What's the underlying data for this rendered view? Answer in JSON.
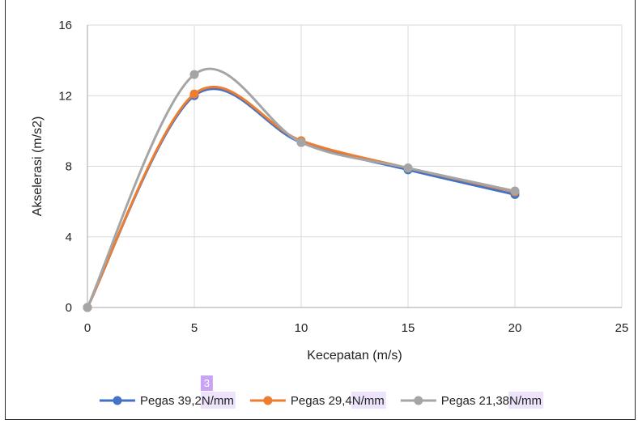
{
  "chart_data": {
    "type": "line",
    "xlabel": "Kecepatan (m/s)",
    "ylabel": "Akselerasi (m/s2)",
    "xlim": [
      0,
      25
    ],
    "ylim": [
      0,
      16
    ],
    "xticks": [
      0,
      5,
      10,
      15,
      20,
      25
    ],
    "yticks": [
      0,
      4,
      8,
      12,
      16
    ],
    "grid": "vertical and horizontal gridlines",
    "smooth": true,
    "legend_position": "bottom",
    "series": [
      {
        "name_prefix": "Pegas 39,2",
        "name_unit": "N/mm",
        "color": "#4472C4",
        "x": [
          0,
          5,
          10,
          15,
          20
        ],
        "y": [
          0,
          12.0,
          9.35,
          7.8,
          6.4
        ]
      },
      {
        "name_prefix": "Pegas 29,4",
        "name_unit": "N/mm",
        "color": "#ED7D31",
        "x": [
          0,
          5,
          10,
          15,
          20
        ],
        "y": [
          0,
          12.1,
          9.45,
          7.9,
          6.55
        ]
      },
      {
        "name_prefix": "Pegas 21,38",
        "name_unit": "N/mm",
        "color": "#A5A5A5",
        "x": [
          0,
          5,
          10,
          15,
          20
        ],
        "y": [
          0,
          13.2,
          9.35,
          7.9,
          6.6
        ]
      }
    ],
    "badge": "3"
  }
}
